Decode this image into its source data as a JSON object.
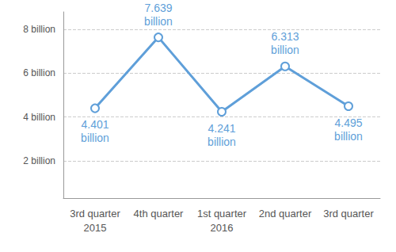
{
  "chart_data": {
    "type": "line",
    "categories": [
      "3rd quarter\n2015",
      "4th quarter",
      "1st quarter\n2016",
      "2nd quarter",
      "3rd quarter"
    ],
    "values": [
      4.401,
      7.639,
      4.241,
      6.313,
      4.495
    ],
    "value_labels": [
      "4.401\nbillion",
      "7.639\nbillion",
      "4.241\nbillion",
      "6.313\nbillion",
      "4.495\nbillion"
    ],
    "color": "#5f9fd9",
    "ylim": [
      0.3,
      8.8
    ],
    "yticks": [
      {
        "value": 2,
        "label": "2 billion"
      },
      {
        "value": 4,
        "label": "4 billion"
      },
      {
        "value": 6,
        "label": "6 billion"
      },
      {
        "value": 8,
        "label": "8 billion"
      }
    ],
    "grid": true,
    "data_labels": true,
    "marker": "circle"
  }
}
